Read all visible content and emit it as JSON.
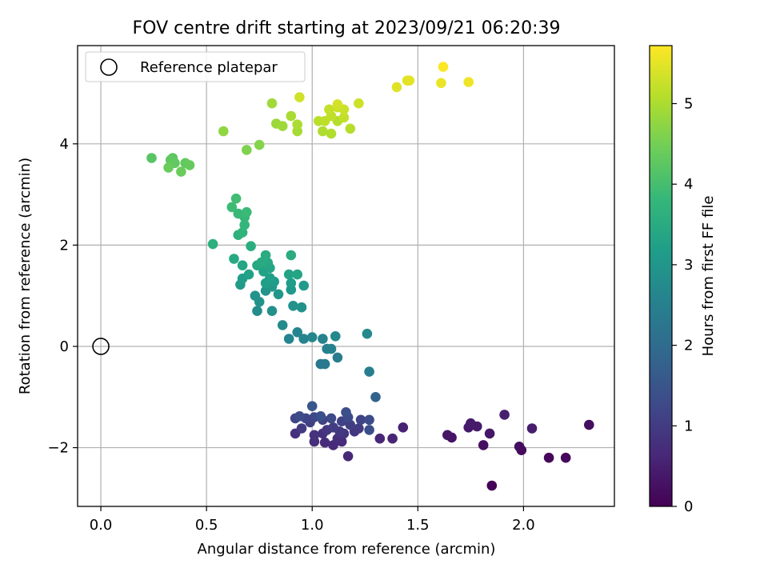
{
  "chart_data": {
    "type": "scatter",
    "title": "FOV centre drift starting at 2023/09/21 06:20:39",
    "xlabel": "Angular distance from reference (arcmin)",
    "ylabel": "Rotation from reference (arcmin)",
    "xlim": [
      -0.11,
      2.43
    ],
    "ylim": [
      -3.16,
      5.94
    ],
    "xticks": [
      0.0,
      0.5,
      1.0,
      1.5,
      2.0
    ],
    "xtick_labels": [
      "0.0",
      "0.5",
      "1.0",
      "1.5",
      "2.0"
    ],
    "yticks": [
      -2,
      0,
      2,
      4
    ],
    "ytick_labels": [
      "−2",
      "0",
      "2",
      "4"
    ],
    "grid": true,
    "legend": {
      "position": "upper-left",
      "entries": [
        "Reference platepar"
      ]
    },
    "reference_point": {
      "x": 0.0,
      "y": 0.0,
      "marker": "hollow-circle"
    },
    "colorbar": {
      "label": "Hours from first FF file",
      "colormap": "viridis",
      "range": [
        0,
        5.72
      ],
      "ticks": [
        0,
        1,
        2,
        3,
        4,
        5
      ],
      "tick_labels": [
        "0",
        "1",
        "2",
        "3",
        "4",
        "5"
      ],
      "stops": [
        "#440154",
        "#482878",
        "#3e4a89",
        "#31688e",
        "#26828e",
        "#1f9e89",
        "#35b779",
        "#6ece58",
        "#b5de2b",
        "#fde725"
      ]
    },
    "points": [
      [
        1.85,
        -2.75,
        0.05
      ],
      [
        2.12,
        -2.2,
        0.1
      ],
      [
        2.2,
        -2.2,
        0.12
      ],
      [
        1.99,
        -2.05,
        0.15
      ],
      [
        1.98,
        -1.98,
        0.2
      ],
      [
        2.31,
        -1.55,
        0.22
      ],
      [
        1.81,
        -1.95,
        0.25
      ],
      [
        1.66,
        -1.8,
        0.3
      ],
      [
        1.64,
        -1.75,
        0.32
      ],
      [
        1.84,
        -1.72,
        0.35
      ],
      [
        1.74,
        -1.6,
        0.38
      ],
      [
        1.78,
        -1.58,
        0.4
      ],
      [
        1.75,
        -1.52,
        0.42
      ],
      [
        2.04,
        -1.62,
        0.45
      ],
      [
        1.91,
        -1.35,
        0.5
      ],
      [
        1.43,
        -1.6,
        0.55
      ],
      [
        1.38,
        -1.82,
        0.6
      ],
      [
        1.32,
        -1.82,
        0.62
      ],
      [
        1.17,
        -2.17,
        0.65
      ],
      [
        1.1,
        -1.95,
        0.68
      ],
      [
        1.06,
        -1.9,
        0.7
      ],
      [
        1.14,
        -1.88,
        0.72
      ],
      [
        1.01,
        -1.88,
        0.75
      ],
      [
        1.12,
        -1.82,
        0.78
      ],
      [
        0.92,
        -1.72,
        0.8
      ],
      [
        1.05,
        -1.72,
        0.82
      ],
      [
        1.01,
        -1.75,
        0.85
      ],
      [
        1.15,
        -1.72,
        0.88
      ],
      [
        1.2,
        -1.68,
        0.9
      ],
      [
        1.07,
        -1.65,
        0.92
      ],
      [
        1.13,
        -1.68,
        0.95
      ],
      [
        1.22,
        -1.62,
        0.98
      ],
      [
        0.95,
        -1.62,
        1.0
      ],
      [
        1.1,
        -1.6,
        1.02
      ],
      [
        1.18,
        -1.55,
        1.05
      ],
      [
        0.99,
        -1.5,
        1.08
      ],
      [
        1.05,
        -1.45,
        1.1
      ],
      [
        1.14,
        -1.48,
        1.12
      ],
      [
        1.23,
        -1.45,
        1.15
      ],
      [
        0.92,
        -1.42,
        1.18
      ],
      [
        0.97,
        -1.42,
        1.2
      ],
      [
        1.01,
        -1.4,
        1.22
      ],
      [
        1.09,
        -1.42,
        1.25
      ],
      [
        1.17,
        -1.4,
        1.28
      ],
      [
        0.94,
        -1.38,
        1.3
      ],
      [
        1.27,
        -1.45,
        1.32
      ],
      [
        1.27,
        -1.65,
        1.35
      ],
      [
        1.16,
        -1.3,
        1.38
      ],
      [
        1.04,
        -1.38,
        1.4
      ],
      [
        1.0,
        -1.18,
        1.5
      ],
      [
        1.3,
        -1.0,
        1.8
      ],
      [
        1.04,
        -0.35,
        2.3
      ],
      [
        1.06,
        -0.35,
        2.35
      ],
      [
        1.12,
        -0.22,
        2.4
      ],
      [
        1.27,
        -0.5,
        2.45
      ],
      [
        1.07,
        -0.05,
        2.5
      ],
      [
        1.09,
        -0.05,
        2.52
      ],
      [
        1.05,
        0.15,
        2.55
      ],
      [
        0.96,
        0.15,
        2.58
      ],
      [
        0.89,
        0.15,
        2.6
      ],
      [
        0.93,
        0.28,
        2.62
      ],
      [
        1.0,
        0.18,
        2.65
      ],
      [
        1.11,
        0.2,
        2.68
      ],
      [
        1.26,
        0.25,
        2.7
      ],
      [
        0.86,
        0.42,
        2.75
      ],
      [
        0.74,
        0.7,
        2.8
      ],
      [
        0.81,
        0.7,
        2.85
      ],
      [
        0.95,
        0.77,
        2.88
      ],
      [
        0.91,
        0.8,
        2.9
      ],
      [
        0.75,
        0.88,
        2.92
      ],
      [
        0.73,
        1.0,
        2.95
      ],
      [
        0.78,
        1.1,
        2.98
      ],
      [
        0.84,
        1.03,
        3.0
      ],
      [
        0.81,
        1.18,
        3.02
      ],
      [
        0.9,
        1.12,
        3.05
      ],
      [
        0.96,
        1.2,
        3.08
      ],
      [
        0.66,
        1.22,
        3.1
      ],
      [
        0.82,
        1.28,
        3.12
      ],
      [
        0.9,
        1.25,
        3.15
      ],
      [
        0.67,
        1.34,
        3.18
      ],
      [
        0.78,
        1.25,
        3.2
      ],
      [
        0.8,
        1.35,
        3.22
      ],
      [
        0.7,
        1.42,
        3.25
      ],
      [
        0.77,
        1.48,
        3.28
      ],
      [
        0.89,
        1.42,
        3.3
      ],
      [
        0.93,
        1.42,
        3.32
      ],
      [
        0.8,
        1.55,
        3.35
      ],
      [
        0.67,
        1.6,
        3.38
      ],
      [
        0.74,
        1.6,
        3.4
      ],
      [
        0.79,
        1.65,
        3.42
      ],
      [
        0.63,
        1.73,
        3.45
      ],
      [
        0.76,
        1.66,
        3.48
      ],
      [
        0.78,
        1.8,
        3.5
      ],
      [
        0.9,
        1.8,
        3.52
      ],
      [
        0.71,
        1.98,
        3.55
      ],
      [
        0.53,
        2.02,
        3.6
      ],
      [
        0.65,
        2.2,
        3.65
      ],
      [
        0.67,
        2.25,
        3.7
      ],
      [
        0.68,
        2.4,
        3.75
      ],
      [
        0.68,
        2.55,
        3.8
      ],
      [
        0.65,
        2.62,
        3.85
      ],
      [
        0.69,
        2.65,
        3.88
      ],
      [
        0.62,
        2.75,
        3.9
      ],
      [
        0.64,
        2.92,
        3.95
      ],
      [
        0.24,
        3.72,
        4.2
      ],
      [
        0.34,
        3.72,
        4.25
      ],
      [
        0.33,
        3.68,
        4.28
      ],
      [
        0.35,
        3.62,
        4.3
      ],
      [
        0.4,
        3.62,
        4.32
      ],
      [
        0.42,
        3.58,
        4.35
      ],
      [
        0.32,
        3.53,
        4.38
      ],
      [
        0.38,
        3.45,
        4.4
      ],
      [
        0.69,
        3.88,
        4.6
      ],
      [
        0.75,
        3.98,
        4.65
      ],
      [
        0.58,
        4.25,
        4.75
      ],
      [
        0.83,
        4.4,
        4.85
      ],
      [
        0.86,
        4.35,
        4.88
      ],
      [
        0.81,
        4.8,
        4.9
      ],
      [
        0.93,
        4.25,
        4.95
      ],
      [
        0.9,
        4.55,
        4.98
      ],
      [
        0.93,
        4.38,
        5.0
      ],
      [
        1.05,
        4.25,
        5.02
      ],
      [
        1.09,
        4.2,
        5.05
      ],
      [
        1.12,
        4.45,
        5.08
      ],
      [
        1.18,
        4.3,
        5.1
      ],
      [
        1.03,
        4.45,
        5.12
      ],
      [
        1.06,
        4.45,
        5.15
      ],
      [
        1.09,
        4.55,
        5.18
      ],
      [
        1.15,
        4.52,
        5.2
      ],
      [
        1.08,
        4.68,
        5.22
      ],
      [
        1.12,
        4.72,
        5.25
      ],
      [
        1.15,
        4.68,
        5.28
      ],
      [
        1.22,
        4.8,
        5.3
      ],
      [
        0.94,
        4.92,
        5.32
      ],
      [
        1.12,
        4.78,
        5.35
      ],
      [
        1.4,
        5.12,
        5.45
      ],
      [
        1.45,
        5.25,
        5.48
      ],
      [
        1.46,
        5.25,
        5.5
      ],
      [
        1.61,
        5.2,
        5.55
      ],
      [
        1.74,
        5.22,
        5.6
      ],
      [
        1.62,
        5.52,
        5.7
      ]
    ]
  }
}
